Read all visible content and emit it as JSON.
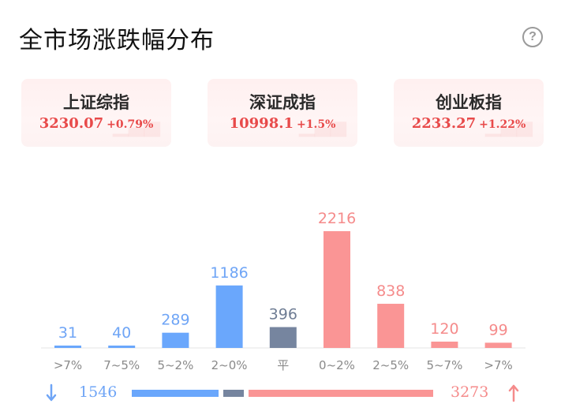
{
  "header": {
    "title": "全市场涨跌幅分布",
    "help_symbol": "?"
  },
  "indices": [
    {
      "name": "上证综指",
      "price": "3230.07",
      "change": "+0.79%"
    },
    {
      "name": "深证成指",
      "price": "10998.1",
      "change": "+1.5%"
    },
    {
      "name": "创业板指",
      "price": "2233.27",
      "change": "+1.22%"
    }
  ],
  "colors": {
    "down": "#6aa7fc",
    "flat": "#76859f",
    "up": "#fa9595",
    "up_text": "#e84a4a"
  },
  "chart_data": {
    "type": "bar",
    "title": "",
    "xlabel": "",
    "ylabel": "",
    "categories": [
      ">7%",
      "7~5%",
      "5~2%",
      "2~0%",
      "平",
      "0~2%",
      "2~5%",
      "5~7%",
      ">7%"
    ],
    "values": [
      31,
      40,
      289,
      1186,
      396,
      2216,
      838,
      120,
      99
    ],
    "groups": [
      "down",
      "down",
      "down",
      "down",
      "flat",
      "up",
      "up",
      "up",
      "up"
    ],
    "ylim": [
      0,
      2216
    ],
    "grid": false,
    "legend": "none"
  },
  "summary": {
    "down_count": "1546",
    "up_count": "3273",
    "down_icon": "arrow-down-icon",
    "up_icon": "arrow-up-icon"
  }
}
